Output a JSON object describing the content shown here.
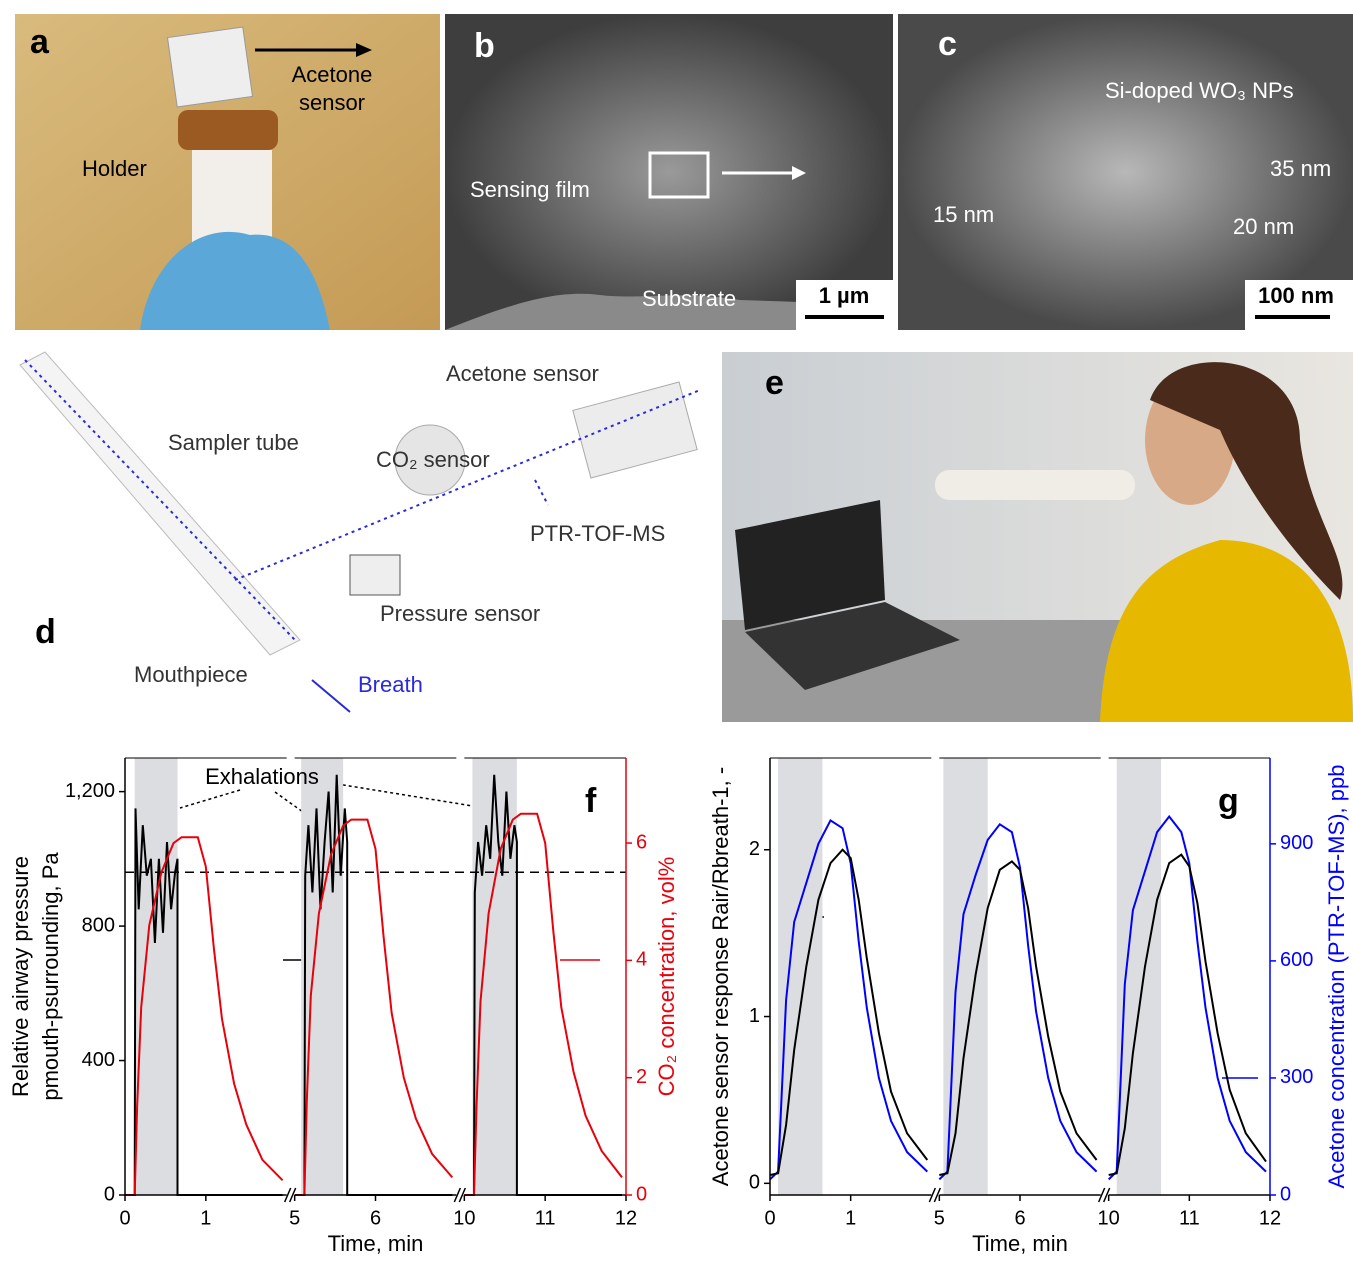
{
  "panels": {
    "a": {
      "label": "a",
      "sensor_label": [
        "Acetone",
        "sensor"
      ],
      "holder_label": "Holder"
    },
    "b": {
      "label": "b",
      "film_label": "Sensing film",
      "substrate_label": "Substrate",
      "scale_bar": "1 µm"
    },
    "c": {
      "label": "c",
      "title": "Si-doped WO₃ NPs",
      "sizes": [
        "15 nm",
        "35 nm",
        "20 nm"
      ],
      "scale_bar": "100 nm"
    },
    "d": {
      "label": "d",
      "parts": [
        "Acetone sensor",
        "Sampler tube",
        "CO₂ sensor",
        "PTR-TOF-MS",
        "Pressure sensor",
        "Mouthpiece",
        "Breath"
      ]
    },
    "e": {
      "label": "e"
    }
  },
  "chart_data": [
    {
      "type": "line",
      "panel_label": "f",
      "ylabel": [
        "Relative airway pressure",
        "pmouth-psurrounding, Pa"
      ],
      "y2label": "CO₂ concentration, vol%",
      "xlabel": "Time, min",
      "annotation": "Exhalations",
      "x_segments": [
        [
          0,
          2
        ],
        [
          5,
          7
        ],
        [
          10,
          12
        ]
      ],
      "xticks": [
        0,
        1,
        5,
        6,
        10,
        11,
        12
      ],
      "ylim": [
        0,
        1300
      ],
      "yticks": [
        0,
        400,
        800,
        {
          "value": 1200,
          "label": "1,200"
        }
      ],
      "y2lim": [
        0,
        7.45
      ],
      "y2ticks": [
        0,
        2,
        4,
        6
      ],
      "exhalation_spans": [
        [
          0.12,
          0.65
        ],
        [
          5.08,
          5.6
        ],
        [
          10.1,
          10.65
        ]
      ],
      "threshold": 960,
      "series": [
        {
          "color": "#000000",
          "axis": "y",
          "x": [
            0,
            0.12,
            0.13,
            0.17,
            0.22,
            0.27,
            0.32,
            0.37,
            0.42,
            0.47,
            0.52,
            0.57,
            0.62,
            0.65,
            0.65,
            1.95,
            5,
            5.12,
            5.13,
            5.17,
            5.22,
            5.27,
            5.32,
            5.37,
            5.42,
            5.47,
            5.52,
            5.57,
            5.62,
            5.65,
            5.65,
            6.95,
            10,
            10.12,
            10.13,
            10.17,
            10.22,
            10.27,
            10.32,
            10.37,
            10.42,
            10.47,
            10.52,
            10.57,
            10.62,
            10.65,
            10.65,
            11.95
          ],
          "values": [
            0,
            0,
            1150,
            850,
            1100,
            950,
            1000,
            750,
            1000,
            780,
            1050,
            850,
            960,
            1000,
            0,
            0,
            0,
            0,
            950,
            1100,
            900,
            1150,
            850,
            1050,
            1200,
            900,
            1250,
            950,
            1150,
            1050,
            0,
            0,
            0,
            0,
            900,
            1050,
            950,
            1100,
            1000,
            1250,
            1050,
            950,
            1200,
            1000,
            1100,
            1050,
            0,
            0
          ]
        },
        {
          "color": "#e8000b",
          "axis": "y2",
          "x": [
            0,
            0.12,
            0.15,
            0.2,
            0.3,
            0.45,
            0.6,
            0.7,
            0.9,
            1,
            1.1,
            1.2,
            1.35,
            1.5,
            1.7,
            1.95,
            5,
            5.12,
            5.15,
            5.2,
            5.3,
            5.45,
            5.6,
            5.7,
            5.9,
            6,
            6.1,
            6.2,
            6.35,
            6.5,
            6.7,
            6.95,
            10,
            10.12,
            10.15,
            10.2,
            10.3,
            10.45,
            10.6,
            10.7,
            10.9,
            11,
            11.1,
            11.2,
            11.35,
            11.5,
            11.7,
            11.95
          ],
          "values": [
            0,
            0,
            1.5,
            3.2,
            4.6,
            5.5,
            6.0,
            6.1,
            6.1,
            5.6,
            4.2,
            3.0,
            1.9,
            1.2,
            0.6,
            0.25,
            0,
            0,
            1.6,
            3.4,
            4.8,
            5.8,
            6.3,
            6.4,
            6.4,
            5.9,
            4.4,
            3.1,
            2.0,
            1.3,
            0.7,
            0.3,
            0,
            0,
            1.5,
            3.3,
            4.8,
            5.9,
            6.4,
            6.5,
            6.5,
            6.0,
            4.5,
            3.2,
            2.1,
            1.35,
            0.75,
            0.3
          ]
        }
      ]
    },
    {
      "type": "line",
      "panel_label": "g",
      "ylabel": [
        "Acetone sensor response Rair/Rbreath-1, -"
      ],
      "y2label": "Acetone concentration (PTR-TOF-MS), ppb",
      "xlabel": "Time, min",
      "x_segments": [
        [
          0,
          2
        ],
        [
          5,
          7
        ],
        [
          10,
          12
        ]
      ],
      "xticks": [
        0,
        1,
        5,
        6,
        10,
        11,
        12
      ],
      "ylim": [
        -0.07,
        2.55
      ],
      "yticks": [
        0,
        1,
        2
      ],
      "y2lim": [
        0,
        1120
      ],
      "y2ticks": [
        0,
        300,
        600,
        900
      ],
      "exhalation_spans": [
        [
          0.1,
          0.65
        ],
        [
          5.05,
          5.6
        ],
        [
          10.1,
          10.65
        ]
      ],
      "series": [
        {
          "color": "#0000ff",
          "axis": "y2",
          "x": [
            0,
            0.1,
            0.2,
            0.3,
            0.45,
            0.6,
            0.75,
            0.9,
            1,
            1.1,
            1.2,
            1.35,
            1.5,
            1.7,
            1.95,
            5,
            5.1,
            5.2,
            5.3,
            5.45,
            5.6,
            5.75,
            5.9,
            6,
            6.1,
            6.2,
            6.35,
            6.5,
            6.7,
            6.95,
            10,
            10.1,
            10.2,
            10.3,
            10.45,
            10.6,
            10.75,
            10.9,
            11,
            11.1,
            11.2,
            11.35,
            11.5,
            11.7,
            11.95
          ],
          "values": [
            40,
            60,
            500,
            700,
            800,
            900,
            960,
            940,
            850,
            650,
            480,
            300,
            190,
            110,
            60,
            40,
            60,
            520,
            720,
            820,
            910,
            950,
            930,
            840,
            640,
            470,
            300,
            190,
            110,
            60,
            40,
            60,
            540,
            730,
            830,
            930,
            970,
            930,
            850,
            650,
            480,
            300,
            190,
            110,
            60
          ]
        },
        {
          "color": "#000000",
          "axis": "y",
          "x": [
            0,
            0.1,
            0.2,
            0.3,
            0.45,
            0.6,
            0.75,
            0.9,
            1,
            1.1,
            1.2,
            1.35,
            1.5,
            1.7,
            1.95,
            5,
            5.1,
            5.2,
            5.3,
            5.45,
            5.6,
            5.75,
            5.9,
            6,
            6.1,
            6.2,
            6.35,
            6.5,
            6.7,
            6.95,
            10,
            10.1,
            10.2,
            10.3,
            10.45,
            10.6,
            10.75,
            10.9,
            11,
            11.1,
            11.2,
            11.35,
            11.5,
            11.7,
            11.95
          ],
          "values": [
            0.05,
            0.06,
            0.35,
            0.8,
            1.3,
            1.7,
            1.92,
            2.0,
            1.95,
            1.7,
            1.35,
            0.9,
            0.55,
            0.3,
            0.14,
            0.05,
            0.06,
            0.3,
            0.75,
            1.25,
            1.65,
            1.88,
            1.93,
            1.88,
            1.65,
            1.3,
            0.88,
            0.55,
            0.3,
            0.14,
            0.05,
            0.06,
            0.33,
            0.78,
            1.3,
            1.7,
            1.92,
            1.97,
            1.9,
            1.68,
            1.33,
            0.9,
            0.56,
            0.3,
            0.13
          ]
        }
      ]
    }
  ]
}
